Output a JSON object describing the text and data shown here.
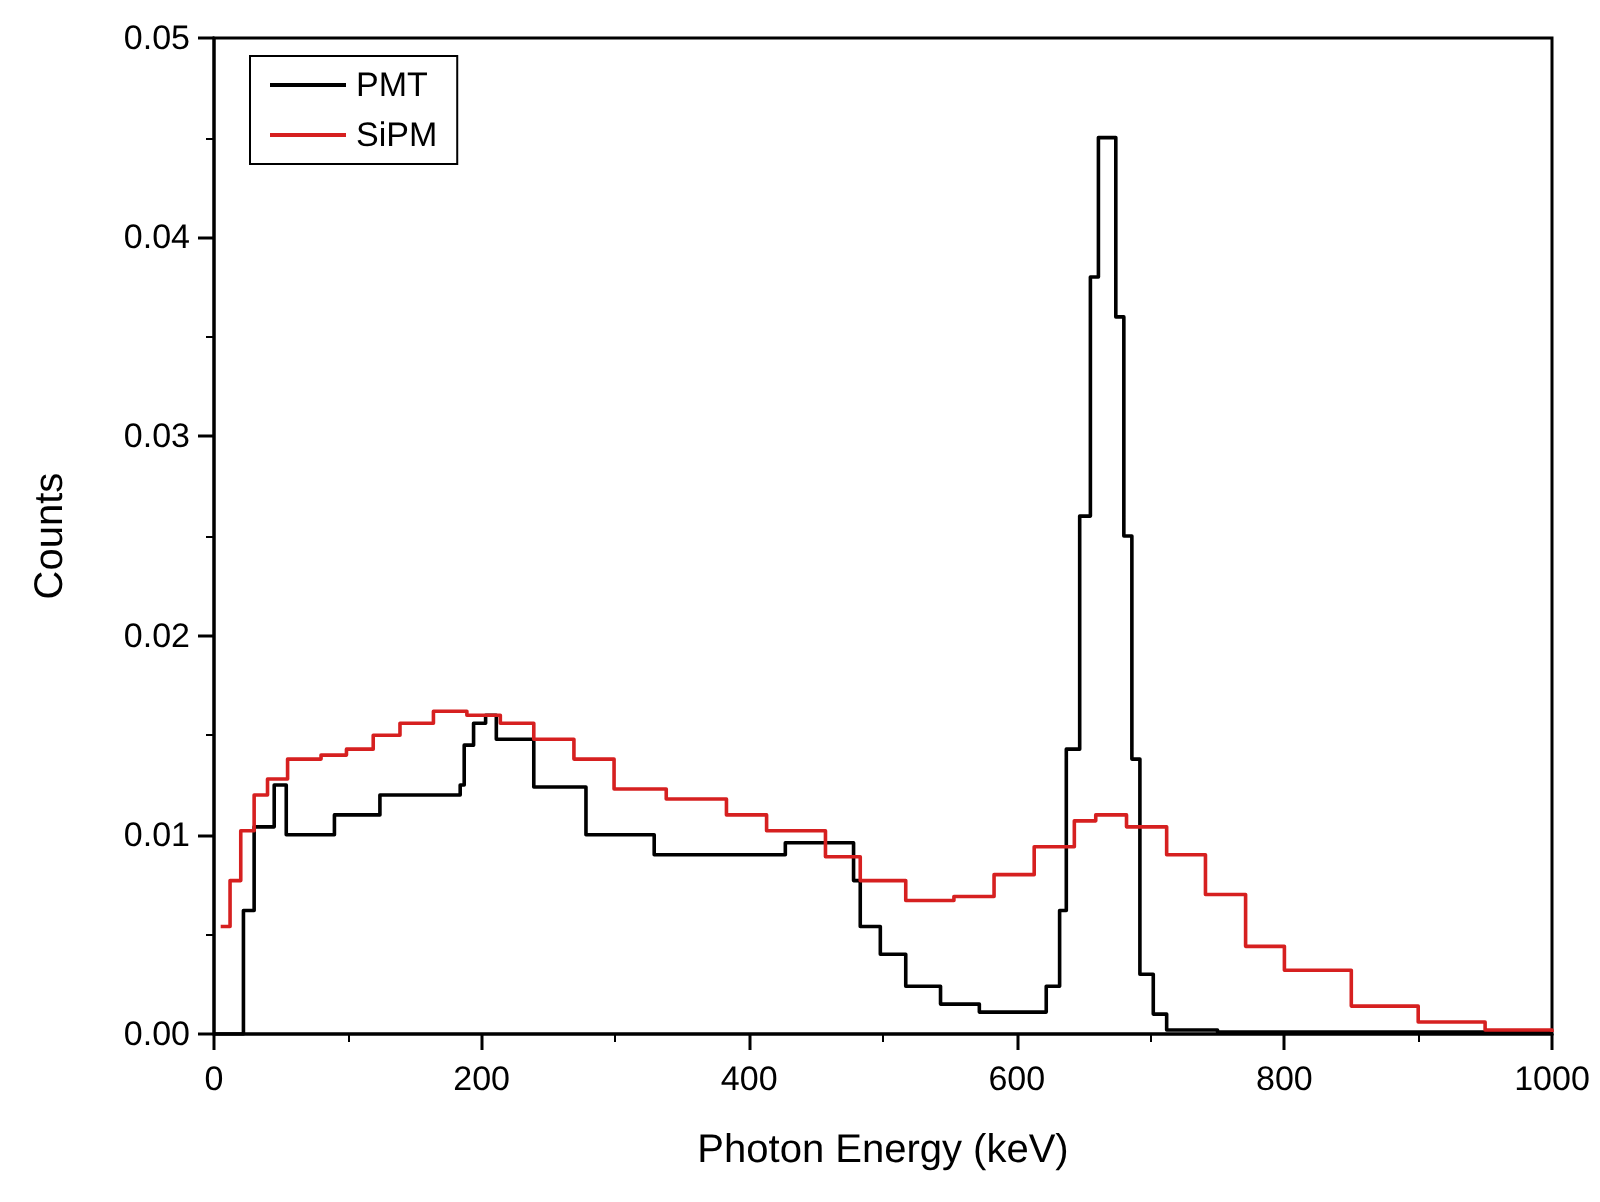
{
  "chart_data": {
    "type": "step",
    "xlabel": "Photon Energy (keV)",
    "ylabel": "Counts",
    "xlim": [
      0,
      1000
    ],
    "ylim": [
      0,
      0.05
    ],
    "xticks": [
      0,
      200,
      400,
      600,
      800,
      1000
    ],
    "yticks": [
      {
        "value": 0,
        "label": "0.00"
      },
      {
        "value": 0.01,
        "label": "0.01"
      },
      {
        "value": 0.02,
        "label": "0.02"
      },
      {
        "value": 0.03,
        "label": "0.03"
      },
      {
        "value": 0.04,
        "label": "0.04"
      },
      {
        "value": 0.05,
        "label": "0.05"
      }
    ],
    "grid": false,
    "legend": "top left",
    "marker": "none",
    "line_style": "solid",
    "series": [
      {
        "name": "PMT",
        "color": "#000000",
        "x": [
          0,
          22,
          30,
          45,
          54,
          90,
          124,
          158,
          184,
          187,
          194,
          203,
          211,
          239,
          278,
          329,
          380,
          427,
          463,
          478,
          483,
          498,
          517,
          543,
          572,
          607,
          622,
          632,
          637,
          647,
          655,
          661,
          667,
          674,
          680,
          686,
          692,
          702,
          712,
          750,
          1000
        ],
        "values": [
          0,
          0.0062,
          0.0104,
          0.0125,
          0.01,
          0.011,
          0.012,
          0.012,
          0.0125,
          0.0145,
          0.0156,
          0.016,
          0.0148,
          0.0124,
          0.01,
          0.009,
          0.009,
          0.0096,
          0.0096,
          0.0077,
          0.0054,
          0.004,
          0.0024,
          0.0015,
          0.0011,
          0.0011,
          0.0024,
          0.0062,
          0.0143,
          0.026,
          0.038,
          0.045,
          0.045,
          0.036,
          0.025,
          0.0138,
          0.003,
          0.001,
          0.0002,
          0.0001,
          0.0001
        ]
      },
      {
        "name": "SiPM",
        "color": "#d62020",
        "x": [
          5,
          12,
          20,
          30,
          40,
          55,
          80,
          99,
          119,
          139,
          164,
          189,
          214,
          239,
          269,
          299,
          338,
          383,
          413,
          457,
          483,
          517,
          553,
          583,
          613,
          643,
          659,
          682,
          712,
          741,
          771,
          800,
          850,
          900,
          950,
          1000
        ],
        "values": [
          0.0054,
          0.0077,
          0.0102,
          0.012,
          0.0128,
          0.0138,
          0.014,
          0.0143,
          0.015,
          0.0156,
          0.0162,
          0.016,
          0.0156,
          0.0148,
          0.0138,
          0.0123,
          0.0118,
          0.011,
          0.0102,
          0.0089,
          0.0077,
          0.0067,
          0.0069,
          0.008,
          0.0094,
          0.0107,
          0.011,
          0.0104,
          0.009,
          0.007,
          0.0044,
          0.0032,
          0.0014,
          0.0006,
          0.0002,
          0.0001
        ]
      }
    ]
  }
}
